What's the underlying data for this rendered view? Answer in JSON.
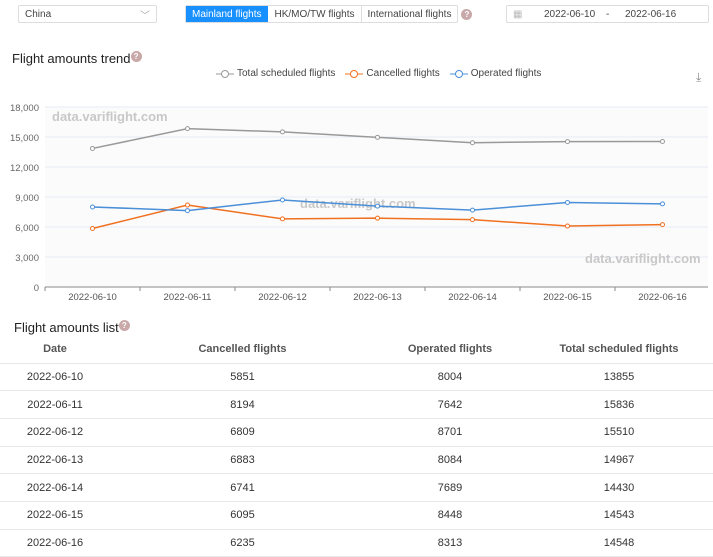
{
  "filters": {
    "region": "China",
    "tabs": [
      "Mainland flights",
      "HK/MO/TW flights",
      "International flights"
    ],
    "active_tab": "Mainland flights",
    "date_start": "2022-06-10",
    "date_sep": "-",
    "date_end": "2022-06-16"
  },
  "trend_title": "Flight amounts trend",
  "list_title": "Flight amounts list",
  "help": "?",
  "watermark": "data.variflight.com",
  "colors": {
    "total": "#999999",
    "cancelled": "#f07020",
    "operated": "#4a8fd8",
    "accent": "#1890ff"
  },
  "chart_data": {
    "type": "line",
    "categories": [
      "2022-06-10",
      "2022-06-11",
      "2022-06-12",
      "2022-06-13",
      "2022-06-14",
      "2022-06-15",
      "2022-06-16"
    ],
    "series": [
      {
        "name": "Total scheduled flights",
        "values": [
          13855,
          15836,
          15510,
          14967,
          14430,
          14543,
          14548
        ]
      },
      {
        "name": "Cancelled flights",
        "values": [
          5851,
          8194,
          6809,
          6883,
          6741,
          6095,
          6235
        ]
      },
      {
        "name": "Operated flights",
        "values": [
          8004,
          7642,
          8701,
          8084,
          7689,
          8448,
          8313
        ]
      }
    ],
    "yticks": [
      "0",
      "3,000",
      "6,000",
      "9,000",
      "12,000",
      "15,000",
      "18,000"
    ],
    "ylim": [
      0,
      18000
    ],
    "grid": true,
    "legend": "top"
  },
  "table": {
    "headers": [
      "Date",
      "Cancelled flights",
      "Operated flights",
      "Total scheduled flights"
    ],
    "rows": [
      [
        "2022-06-10",
        "5851",
        "8004",
        "13855"
      ],
      [
        "2022-06-11",
        "8194",
        "7642",
        "15836"
      ],
      [
        "2022-06-12",
        "6809",
        "8701",
        "15510"
      ],
      [
        "2022-06-13",
        "6883",
        "8084",
        "14967"
      ],
      [
        "2022-06-14",
        "6741",
        "7689",
        "14430"
      ],
      [
        "2022-06-15",
        "6095",
        "8448",
        "14543"
      ],
      [
        "2022-06-16",
        "6235",
        "8313",
        "14548"
      ]
    ]
  }
}
